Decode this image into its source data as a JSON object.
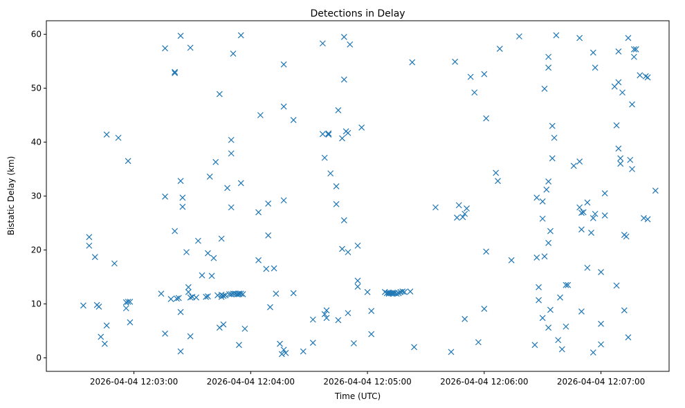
{
  "chart_data": {
    "type": "scatter",
    "title": "Detections in Delay",
    "xlabel": "Time (UTC)",
    "ylabel": "Bistatic Delay (km)",
    "x_unit": "time",
    "xlim": [
      "2026-04-04 12:02:15",
      "2026-04-04 12:07:35"
    ],
    "ylim": [
      -2.5,
      62.5
    ],
    "x_ticks": [
      "2026-04-04 12:03:00",
      "2026-04-04 12:04:00",
      "2026-04-04 12:05:00",
      "2026-04-04 12:06:00",
      "2026-04-04 12:07:00"
    ],
    "y_ticks": [
      0,
      10,
      20,
      30,
      40,
      50,
      60
    ],
    "grid": false,
    "marker": "x",
    "color": "#1f77b4",
    "points": [
      [
        "12:02:34",
        9.7
      ],
      [
        "12:02:37",
        22.4
      ],
      [
        "12:02:37",
        20.8
      ],
      [
        "12:02:40",
        18.7
      ],
      [
        "12:02:41",
        9.8
      ],
      [
        "12:02:42",
        9.5
      ],
      [
        "12:02:43",
        3.9
      ],
      [
        "12:02:45",
        2.6
      ],
      [
        "12:02:46",
        6.0
      ],
      [
        "12:02:46",
        41.4
      ],
      [
        "12:02:50",
        17.5
      ],
      [
        "12:02:52",
        40.8
      ],
      [
        "12:02:56",
        10.3
      ],
      [
        "12:02:56",
        9.2
      ],
      [
        "12:02:57",
        10.4
      ],
      [
        "12:02:57",
        36.5
      ],
      [
        "12:02:58",
        10.4
      ],
      [
        "12:02:58",
        6.6
      ],
      [
        "12:03:14",
        11.9
      ],
      [
        "12:03:16",
        57.4
      ],
      [
        "12:03:16",
        29.9
      ],
      [
        "12:03:16",
        4.5
      ],
      [
        "12:03:19",
        10.9
      ],
      [
        "12:03:21",
        53.0
      ],
      [
        "12:03:21",
        52.8
      ],
      [
        "12:03:21",
        23.5
      ],
      [
        "12:03:22",
        11.0
      ],
      [
        "12:03:23",
        11.1
      ],
      [
        "12:03:24",
        59.7
      ],
      [
        "12:03:24",
        32.8
      ],
      [
        "12:03:24",
        8.5
      ],
      [
        "12:03:24",
        1.2
      ],
      [
        "12:03:25",
        28.0
      ],
      [
        "12:03:25",
        29.7
      ],
      [
        "12:03:27",
        19.6
      ],
      [
        "12:03:28",
        13.1
      ],
      [
        "12:03:28",
        12.2
      ],
      [
        "12:03:29",
        11.2
      ],
      [
        "12:03:29",
        4.0
      ],
      [
        "12:03:29",
        57.5
      ],
      [
        "12:03:30",
        11.3
      ],
      [
        "12:03:32",
        11.2
      ],
      [
        "12:03:33",
        21.7
      ],
      [
        "12:03:35",
        15.3
      ],
      [
        "12:03:37",
        11.3
      ],
      [
        "12:03:38",
        11.4
      ],
      [
        "12:03:38",
        19.4
      ],
      [
        "12:03:39",
        33.6
      ],
      [
        "12:03:40",
        15.2
      ],
      [
        "12:03:41",
        18.5
      ],
      [
        "12:03:42",
        36.3
      ],
      [
        "12:03:43",
        11.6
      ],
      [
        "12:03:44",
        48.9
      ],
      [
        "12:03:44",
        5.6
      ],
      [
        "12:03:45",
        11.7
      ],
      [
        "12:03:45",
        11.3
      ],
      [
        "12:03:45",
        22.1
      ],
      [
        "12:03:46",
        6.2
      ],
      [
        "12:03:46",
        11.5
      ],
      [
        "12:03:47",
        11.6
      ],
      [
        "12:03:48",
        31.5
      ],
      [
        "12:03:49",
        11.8
      ],
      [
        "12:03:50",
        40.4
      ],
      [
        "12:03:50",
        27.9
      ],
      [
        "12:03:50",
        37.9
      ],
      [
        "12:03:50",
        11.8
      ],
      [
        "12:03:51",
        56.4
      ],
      [
        "12:03:51",
        11.9
      ],
      [
        "12:03:52",
        11.9
      ],
      [
        "12:03:53",
        11.8
      ],
      [
        "12:03:53",
        11.8
      ],
      [
        "12:03:54",
        11.9
      ],
      [
        "12:03:54",
        11.8
      ],
      [
        "12:03:54",
        11.9
      ],
      [
        "12:03:54",
        2.4
      ],
      [
        "12:03:55",
        59.8
      ],
      [
        "12:03:55",
        32.4
      ],
      [
        "12:03:55",
        11.9
      ],
      [
        "12:03:56",
        11.8
      ],
      [
        "12:03:57",
        5.4
      ],
      [
        "12:04:04",
        18.1
      ],
      [
        "12:04:04",
        27.0
      ],
      [
        "12:04:05",
        45.0
      ],
      [
        "12:04:08",
        16.5
      ],
      [
        "12:04:09",
        28.6
      ],
      [
        "12:04:09",
        22.7
      ],
      [
        "12:04:10",
        9.4
      ],
      [
        "12:04:12",
        16.6
      ],
      [
        "12:04:13",
        11.9
      ],
      [
        "12:04:15",
        2.6
      ],
      [
        "12:04:16",
        0.7
      ],
      [
        "12:04:17",
        54.4
      ],
      [
        "12:04:17",
        46.6
      ],
      [
        "12:04:17",
        29.2
      ],
      [
        "12:04:17",
        1.5
      ],
      [
        "12:04:18",
        0.9
      ],
      [
        "12:04:22",
        44.1
      ],
      [
        "12:04:22",
        12.0
      ],
      [
        "12:04:27",
        1.2
      ],
      [
        "12:04:32",
        2.8
      ],
      [
        "12:04:32",
        7.1
      ],
      [
        "12:04:37",
        58.3
      ],
      [
        "12:04:37",
        41.5
      ],
      [
        "12:04:38",
        37.1
      ],
      [
        "12:04:38",
        8.1
      ],
      [
        "12:04:39",
        8.8
      ],
      [
        "12:04:39",
        7.4
      ],
      [
        "12:04:40",
        41.4
      ],
      [
        "12:04:40",
        41.6
      ],
      [
        "12:04:41",
        34.2
      ],
      [
        "12:04:44",
        31.8
      ],
      [
        "12:04:44",
        28.5
      ],
      [
        "12:04:45",
        45.9
      ],
      [
        "12:04:45",
        7.0
      ],
      [
        "12:04:47",
        40.7
      ],
      [
        "12:04:47",
        20.2
      ],
      [
        "12:04:48",
        59.5
      ],
      [
        "12:04:48",
        51.6
      ],
      [
        "12:04:48",
        25.5
      ],
      [
        "12:04:49",
        42.0
      ],
      [
        "12:04:50",
        41.7
      ],
      [
        "12:04:50",
        19.6
      ],
      [
        "12:04:50",
        8.3
      ],
      [
        "12:04:51",
        58.1
      ],
      [
        "12:04:53",
        2.7
      ],
      [
        "12:04:55",
        20.8
      ],
      [
        "12:04:55",
        14.3
      ],
      [
        "12:04:55",
        13.2
      ],
      [
        "12:04:57",
        42.7
      ],
      [
        "12:05:00",
        12.2
      ],
      [
        "12:05:02",
        8.7
      ],
      [
        "12:05:02",
        4.4
      ],
      [
        "12:05:09",
        12.2
      ],
      [
        "12:05:10",
        12.0
      ],
      [
        "12:05:11",
        12.1
      ],
      [
        "12:05:11",
        11.9
      ],
      [
        "12:05:12",
        12.0
      ],
      [
        "12:05:13",
        12.1
      ],
      [
        "12:05:13",
        11.9
      ],
      [
        "12:05:14",
        12.0
      ],
      [
        "12:05:15",
        11.9
      ],
      [
        "12:05:16",
        12.0
      ],
      [
        "12:05:17",
        12.2
      ],
      [
        "12:05:18",
        12.3
      ],
      [
        "12:05:19",
        12.2
      ],
      [
        "12:05:22",
        12.3
      ],
      [
        "12:05:23",
        54.8
      ],
      [
        "12:05:24",
        2.0
      ],
      [
        "12:05:35",
        27.9
      ],
      [
        "12:05:43",
        1.1
      ],
      [
        "12:05:45",
        54.9
      ],
      [
        "12:05:46",
        26.0
      ],
      [
        "12:05:47",
        28.3
      ],
      [
        "12:05:49",
        26.1
      ],
      [
        "12:05:50",
        26.7
      ],
      [
        "12:05:50",
        7.2
      ],
      [
        "12:05:51",
        27.7
      ],
      [
        "12:05:53",
        52.1
      ],
      [
        "12:05:55",
        49.2
      ],
      [
        "12:05:57",
        2.9
      ],
      [
        "12:06:00",
        52.6
      ],
      [
        "12:06:00",
        9.1
      ],
      [
        "12:06:01",
        44.4
      ],
      [
        "12:06:01",
        19.7
      ],
      [
        "12:06:06",
        34.3
      ],
      [
        "12:06:07",
        32.8
      ],
      [
        "12:06:08",
        57.3
      ],
      [
        "12:06:14",
        18.1
      ],
      [
        "12:06:18",
        59.6
      ],
      [
        "12:06:26",
        2.4
      ],
      [
        "12:06:27",
        18.6
      ],
      [
        "12:06:27",
        29.7
      ],
      [
        "12:06:28",
        13.1
      ],
      [
        "12:06:28",
        10.7
      ],
      [
        "12:06:30",
        29.0
      ],
      [
        "12:06:30",
        25.8
      ],
      [
        "12:06:30",
        7.4
      ],
      [
        "12:06:31",
        49.9
      ],
      [
        "12:06:31",
        18.8
      ],
      [
        "12:06:32",
        31.2
      ],
      [
        "12:06:33",
        55.8
      ],
      [
        "12:06:33",
        53.8
      ],
      [
        "12:06:33",
        32.7
      ],
      [
        "12:06:33",
        21.3
      ],
      [
        "12:06:33",
        5.6
      ],
      [
        "12:06:34",
        8.9
      ],
      [
        "12:06:34",
        23.5
      ],
      [
        "12:06:35",
        43.0
      ],
      [
        "12:06:35",
        37.0
      ],
      [
        "12:06:36",
        40.8
      ],
      [
        "12:06:37",
        59.8
      ],
      [
        "12:06:38",
        3.3
      ],
      [
        "12:06:39",
        11.2
      ],
      [
        "12:06:40",
        1.6
      ],
      [
        "12:06:42",
        13.5
      ],
      [
        "12:06:42",
        5.8
      ],
      [
        "12:06:43",
        13.5
      ],
      [
        "12:06:46",
        35.6
      ],
      [
        "12:06:49",
        59.3
      ],
      [
        "12:06:49",
        36.4
      ],
      [
        "12:06:49",
        27.9
      ],
      [
        "12:06:50",
        26.9
      ],
      [
        "12:06:50",
        23.8
      ],
      [
        "12:06:50",
        8.6
      ],
      [
        "12:06:51",
        27.0
      ],
      [
        "12:06:53",
        28.8
      ],
      [
        "12:06:53",
        16.7
      ],
      [
        "12:06:55",
        23.2
      ],
      [
        "12:06:56",
        56.6
      ],
      [
        "12:06:56",
        25.9
      ],
      [
        "12:06:56",
        1.0
      ],
      [
        "12:06:57",
        53.8
      ],
      [
        "12:06:57",
        26.7
      ],
      [
        "12:07:00",
        15.9
      ],
      [
        "12:07:00",
        6.3
      ],
      [
        "12:07:00",
        2.5
      ],
      [
        "12:07:02",
        30.5
      ],
      [
        "12:07:02",
        26.4
      ],
      [
        "12:07:07",
        50.3
      ],
      [
        "12:07:08",
        43.1
      ],
      [
        "12:07:08",
        13.4
      ],
      [
        "12:07:09",
        51.1
      ],
      [
        "12:07:09",
        38.8
      ],
      [
        "12:07:09",
        56.8
      ],
      [
        "12:07:10",
        37.0
      ],
      [
        "12:07:10",
        36.0
      ],
      [
        "12:07:11",
        49.2
      ],
      [
        "12:07:12",
        8.8
      ],
      [
        "12:07:12",
        22.8
      ],
      [
        "12:07:13",
        22.5
      ],
      [
        "12:07:14",
        3.8
      ],
      [
        "12:07:14",
        59.3
      ],
      [
        "12:07:15",
        36.7
      ],
      [
        "12:07:16",
        35.0
      ],
      [
        "12:07:16",
        47.0
      ],
      [
        "12:07:17",
        57.2
      ],
      [
        "12:07:17",
        55.8
      ],
      [
        "12:07:18",
        57.2
      ],
      [
        "12:07:20",
        52.4
      ],
      [
        "12:07:22",
        25.9
      ],
      [
        "12:07:23",
        52.2
      ],
      [
        "12:07:24",
        52.0
      ],
      [
        "12:07:24",
        25.7
      ],
      [
        "12:07:28",
        31.0
      ]
    ]
  }
}
